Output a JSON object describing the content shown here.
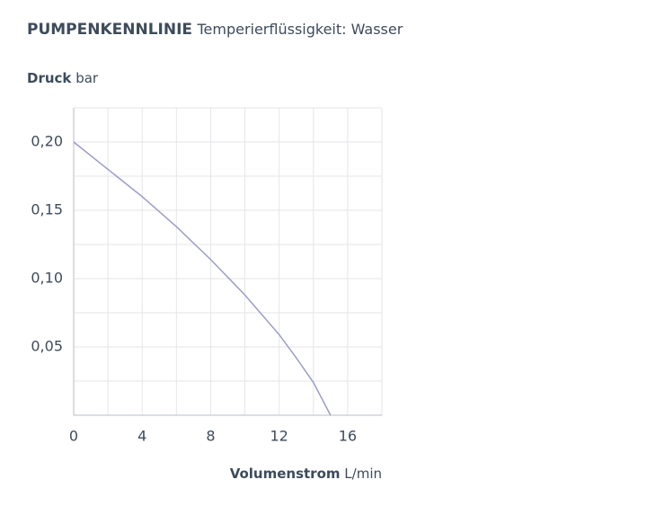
{
  "chart_data": {
    "type": "line",
    "title": "PUMPENKENNLINIE",
    "subtitle": "Temperierflüssigkeit: Wasser",
    "y_label": "Druck",
    "y_unit": "bar",
    "x_label": "Volumenstrom",
    "x_unit": "L/min",
    "x": [
      0,
      2,
      4,
      6,
      8,
      10,
      12,
      13,
      14,
      15
    ],
    "series": [
      {
        "color": "#9c9ccb",
        "values": [
          0.2,
          0.18,
          0.16,
          0.138,
          0.114,
          0.088,
          0.059,
          0.042,
          0.024,
          0
        ]
      }
    ],
    "xlim": [
      0,
      18
    ],
    "xticks": [
      0,
      4,
      8,
      12,
      16
    ],
    "x_minor_ticks": [
      2,
      6,
      10,
      14,
      18
    ],
    "ylim": [
      0,
      0.225
    ],
    "yticks": [
      {
        "value": 0.05,
        "label": "0,05"
      },
      {
        "value": 0.1,
        "label": "0,10"
      },
      {
        "value": 0.15,
        "label": "0,15"
      },
      {
        "value": 0.2,
        "label": "0,20"
      }
    ],
    "y_minor_ticks": [
      0.025,
      0.075,
      0.125,
      0.175,
      0.225
    ],
    "grid": true
  }
}
